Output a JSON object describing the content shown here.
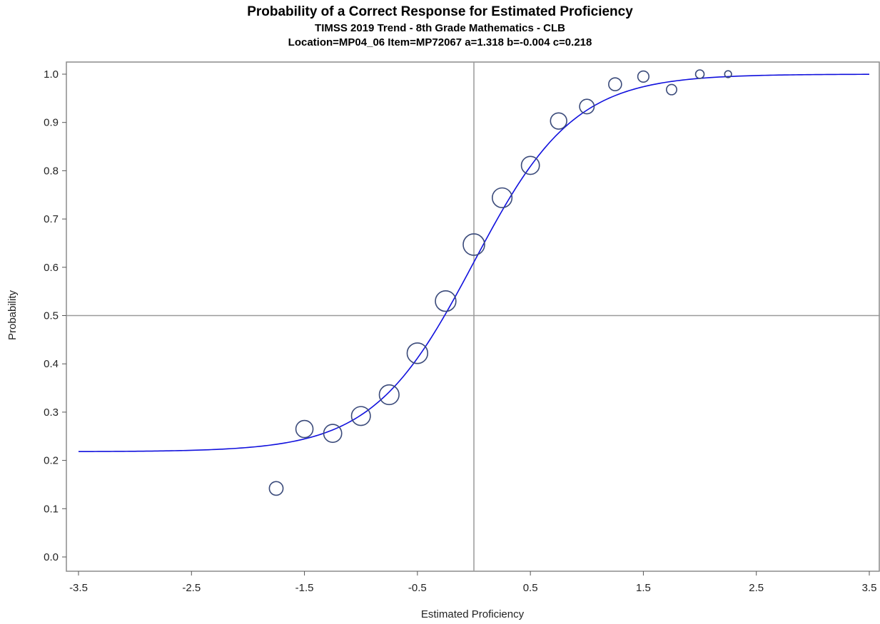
{
  "chart_data": {
    "type": "scatter",
    "title": "Probability of a Correct Response for Estimated Proficiency",
    "subtitle": "TIMSS 2019 Trend - 8th Grade Mathematics - CLB",
    "subtitle2": "Location=MP04_06 Item=MP72067 a=1.318 b=-0.004 c=0.218",
    "xlabel": "Estimated Proficiency",
    "ylabel": "Probability",
    "xlim": [
      -3.5,
      3.5
    ],
    "ylim": [
      0.0,
      1.0
    ],
    "x_ticks": [
      "-3.5",
      "-2.5",
      "-1.5",
      "-0.5",
      "0.5",
      "1.5",
      "2.5",
      "3.5"
    ],
    "y_ticks": [
      "0.0",
      "0.1",
      "0.2",
      "0.3",
      "0.4",
      "0.5",
      "0.6",
      "0.7",
      "0.8",
      "0.9",
      "1.0"
    ],
    "reference_lines": {
      "x": 0.0,
      "y": 0.5
    },
    "curve": {
      "model": "3PL",
      "a": 1.318,
      "b": -0.004,
      "c": 0.218,
      "color": "#1010dd"
    },
    "points": [
      {
        "x": -1.75,
        "y": 0.142,
        "weight": 0.55
      },
      {
        "x": -1.5,
        "y": 0.265,
        "weight": 0.75
      },
      {
        "x": -1.25,
        "y": 0.256,
        "weight": 0.8
      },
      {
        "x": -1.0,
        "y": 0.292,
        "weight": 0.85
      },
      {
        "x": -0.75,
        "y": 0.336,
        "weight": 0.9
      },
      {
        "x": -0.5,
        "y": 0.422,
        "weight": 0.95
      },
      {
        "x": -0.25,
        "y": 0.53,
        "weight": 0.95
      },
      {
        "x": 0.0,
        "y": 0.647,
        "weight": 1.0
      },
      {
        "x": 0.25,
        "y": 0.744,
        "weight": 0.9
      },
      {
        "x": 0.5,
        "y": 0.811,
        "weight": 0.8
      },
      {
        "x": 0.75,
        "y": 0.903,
        "weight": 0.7
      },
      {
        "x": 1.0,
        "y": 0.933,
        "weight": 0.6
      },
      {
        "x": 1.25,
        "y": 0.979,
        "weight": 0.5
      },
      {
        "x": 1.5,
        "y": 0.995,
        "weight": 0.4
      },
      {
        "x": 1.75,
        "y": 0.968,
        "weight": 0.35
      },
      {
        "x": 2.0,
        "y": 1.0,
        "weight": 0.25
      },
      {
        "x": 2.25,
        "y": 1.0,
        "weight": 0.15
      }
    ],
    "marker_color": "#3a4a7a",
    "grid": false
  }
}
